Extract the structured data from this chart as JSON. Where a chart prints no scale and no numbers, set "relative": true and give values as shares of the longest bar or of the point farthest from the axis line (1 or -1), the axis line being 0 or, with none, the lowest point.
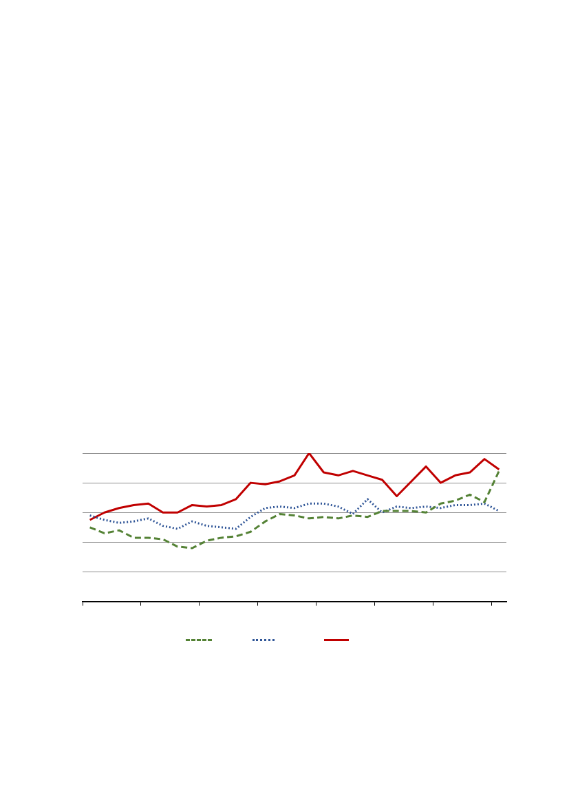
{
  "chart_data": {
    "type": "line",
    "relative": true,
    "grid": "y",
    "categories": [
      null,
      null,
      null,
      null,
      null,
      null,
      null,
      null,
      null,
      null,
      null,
      null,
      null,
      null,
      null,
      null,
      null,
      null,
      null,
      null,
      null,
      null,
      null,
      null,
      null,
      null,
      null,
      null,
      null
    ],
    "series": [
      {
        "color": "#548235",
        "line_style": "dashed",
        "values": [
          0.5,
          0.46,
          0.48,
          0.43,
          0.43,
          0.42,
          0.37,
          0.36,
          0.41,
          0.43,
          0.44,
          0.47,
          0.54,
          0.59,
          0.58,
          0.56,
          0.57,
          0.56,
          0.58,
          0.57,
          0.61,
          0.61,
          0.61,
          0.6,
          0.66,
          0.68,
          0.72,
          0.67,
          0.88
        ]
      },
      {
        "color": "#2f5597",
        "line_style": "dotted",
        "values": [
          0.58,
          0.55,
          0.53,
          0.54,
          0.56,
          0.51,
          0.49,
          0.54,
          0.51,
          0.5,
          0.49,
          0.57,
          0.63,
          0.64,
          0.63,
          0.66,
          0.66,
          0.64,
          0.59,
          0.69,
          0.6,
          0.64,
          0.63,
          0.64,
          0.63,
          0.65,
          0.65,
          0.66,
          0.61
        ]
      },
      {
        "color": "#c00000",
        "line_style": "solid",
        "values": [
          0.55,
          0.6,
          0.63,
          0.65,
          0.66,
          0.6,
          0.6,
          0.65,
          0.64,
          0.65,
          0.69,
          0.8,
          0.79,
          0.81,
          0.85,
          1,
          0.87,
          0.85,
          0.88,
          0.85,
          0.82,
          0.71,
          0.81,
          0.91,
          0.8,
          0.85,
          0.87,
          0.96,
          0.89
        ]
      }
    ]
  }
}
